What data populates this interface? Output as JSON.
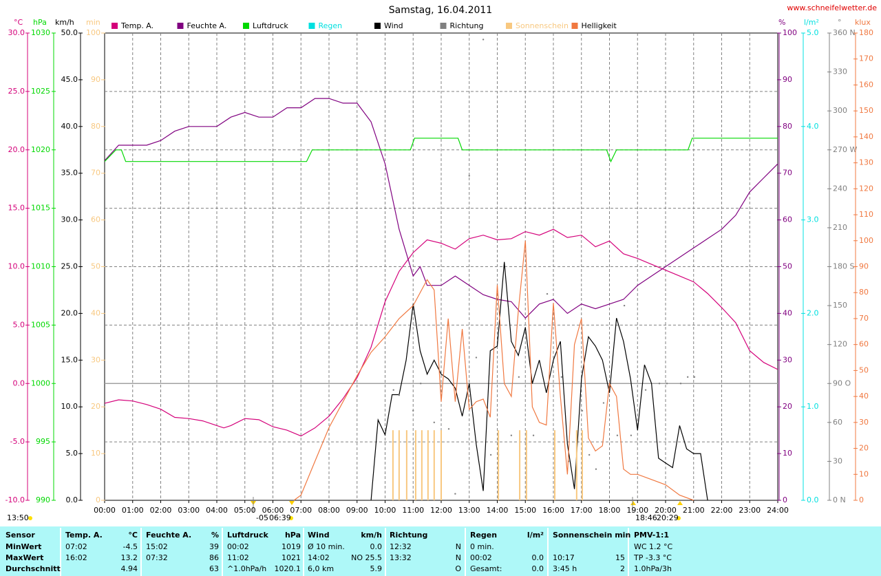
{
  "chart_data": {
    "type": "line",
    "title": "Samstag, 16.04.2011",
    "source": "www.schneifelwetter.de",
    "xlim": [
      0,
      24
    ],
    "xticks": [
      {
        "value": 0,
        "label": "00:00"
      },
      {
        "value": 1,
        "label": "01:00"
      },
      {
        "value": 2,
        "label": "02:00"
      },
      {
        "value": 3,
        "label": "03:00"
      },
      {
        "value": 4,
        "label": "04:00"
      },
      {
        "value": 5,
        "label": "05:00"
      },
      {
        "value": 6,
        "label": "06:00"
      },
      {
        "value": 7,
        "label": "07:00"
      },
      {
        "value": 8,
        "label": "08:00"
      },
      {
        "value": 9,
        "label": "09:00"
      },
      {
        "value": 10,
        "label": "10:00"
      },
      {
        "value": 11,
        "label": "11:00"
      },
      {
        "value": 12,
        "label": "12:00"
      },
      {
        "value": 13,
        "label": "13:00"
      },
      {
        "value": 14,
        "label": "14:00"
      },
      {
        "value": 15,
        "label": "15:00"
      },
      {
        "value": 16,
        "label": "16:00"
      },
      {
        "value": 17,
        "label": "17:00"
      },
      {
        "value": 18,
        "label": "18:00"
      },
      {
        "value": 19,
        "label": "19:00"
      },
      {
        "value": 20,
        "label": "20:00"
      },
      {
        "value": 21,
        "label": "21:00"
      },
      {
        "value": 22,
        "label": "22:00"
      },
      {
        "value": 23,
        "label": "23:00"
      },
      {
        "value": 24,
        "label": "24:00"
      }
    ],
    "grid": true,
    "annotations": [
      "13:50",
      "-05",
      "06:39",
      "18:46",
      "20:29"
    ],
    "series": [
      {
        "name": "Temp. A.",
        "color": "#d4007a",
        "type": "line",
        "unit": "°C",
        "ylim": [
          -10,
          30
        ],
        "yticks": [
          {
            "value": -10,
            "label": "-10.0"
          },
          {
            "value": -5,
            "label": "-5.0"
          },
          {
            "value": 0,
            "label": "0.0"
          },
          {
            "value": 5,
            "label": "5.0"
          },
          {
            "value": 10,
            "label": "10.0"
          },
          {
            "value": 15,
            "label": "15.0"
          },
          {
            "value": 20,
            "label": "20.0"
          },
          {
            "value": 25,
            "label": "25.0"
          },
          {
            "value": 30,
            "label": "30.0"
          }
        ],
        "x": [
          0,
          0.5,
          1,
          1.5,
          2,
          2.5,
          3,
          3.5,
          4,
          4.25,
          4.5,
          5,
          5.5,
          6,
          6.5,
          7,
          7.5,
          8,
          8.5,
          9,
          9.5,
          10,
          10.5,
          11,
          11.5,
          12,
          12.5,
          13,
          13.5,
          14,
          14.5,
          15,
          15.5,
          16,
          16.5,
          17,
          17.5,
          18,
          18.5,
          19,
          19.5,
          20,
          20.5,
          21,
          21.5,
          22,
          22.5,
          23,
          23.5,
          24
        ],
        "values": [
          -1.7,
          -1.4,
          -1.5,
          -1.8,
          -2.2,
          -2.9,
          -3.0,
          -3.2,
          -3.6,
          -3.8,
          -3.6,
          -3.0,
          -3.1,
          -3.7,
          -4.0,
          -4.5,
          -3.8,
          -2.8,
          -1.3,
          0.5,
          3.1,
          7.0,
          9.6,
          11.2,
          12.3,
          12.0,
          11.5,
          12.4,
          12.7,
          12.3,
          12.4,
          13.0,
          12.7,
          13.2,
          12.5,
          12.7,
          11.7,
          12.2,
          11.1,
          10.7,
          10.2,
          9.7,
          9.2,
          8.7,
          7.7,
          6.5,
          5.2,
          2.8,
          1.8,
          1.2
        ]
      },
      {
        "name": "Feuchte A.",
        "color": "#800080",
        "type": "line",
        "unit": "%",
        "ylim": [
          0,
          100
        ],
        "yticks": [
          0,
          10,
          20,
          30,
          40,
          50,
          60,
          70,
          80,
          90,
          100
        ],
        "x": [
          0,
          0.5,
          1,
          1.5,
          2,
          2.5,
          3,
          3.5,
          4,
          4.5,
          5,
          5.5,
          6,
          6.5,
          7,
          7.5,
          8,
          8.5,
          9,
          9.5,
          10,
          10.5,
          11,
          11.25,
          11.5,
          12,
          12.5,
          13,
          13.5,
          14,
          14.5,
          15,
          15.5,
          16,
          16.5,
          17,
          17.5,
          18,
          18.5,
          19,
          19.5,
          20,
          20.5,
          21,
          21.5,
          22,
          22.5,
          23,
          23.5,
          24
        ],
        "values": [
          72.7,
          76,
          76,
          76,
          77,
          79,
          80,
          80,
          80,
          82,
          83,
          82,
          82,
          84,
          84,
          86,
          86,
          85,
          85,
          81,
          72,
          58,
          48,
          50,
          46,
          46,
          48,
          46,
          44,
          43,
          42.5,
          39,
          42,
          43,
          40,
          42,
          41,
          42,
          43,
          46,
          48,
          50,
          52,
          54,
          56,
          58,
          61,
          66,
          69,
          72
        ]
      },
      {
        "name": "Luftdruck",
        "color": "#00d800",
        "type": "line",
        "unit": "hPa",
        "ylim": [
          990,
          1030
        ],
        "yticks": [
          990,
          995,
          1000,
          1005,
          1010,
          1015,
          1020,
          1025,
          1030
        ],
        "x": [
          0,
          0.4,
          0.6,
          0.75,
          7.2,
          7.4,
          10.9,
          11.05,
          12.6,
          12.75,
          17.9,
          18.05,
          18.25,
          20.8,
          20.95,
          24
        ],
        "values": [
          1019,
          1020,
          1020,
          1019,
          1019,
          1020,
          1020,
          1021,
          1021,
          1020,
          1020,
          1019,
          1020,
          1020,
          1021,
          1021
        ]
      },
      {
        "name": "Regen",
        "color": "#00e0e0",
        "unit": "l/m²",
        "ylim": [
          0,
          5
        ],
        "yticks": [
          {
            "value": 0,
            "label": "0.0"
          },
          {
            "value": 1,
            "label": "1.0"
          },
          {
            "value": 2,
            "label": "2.0"
          },
          {
            "value": 3,
            "label": "3.0"
          },
          {
            "value": 4,
            "label": "4.0"
          },
          {
            "value": 5,
            "label": "5.0"
          }
        ]
      },
      {
        "name": "Wind",
        "color": "#000000",
        "type": "line",
        "unit": "km/h",
        "ylim": [
          0,
          50
        ],
        "yticks": [
          {
            "value": 0,
            "label": "0.0"
          },
          {
            "value": 5,
            "label": "5.0"
          },
          {
            "value": 10,
            "label": "10.0"
          },
          {
            "value": 15,
            "label": "15.0"
          },
          {
            "value": 20,
            "label": "20.0"
          },
          {
            "value": 25,
            "label": "25.0"
          },
          {
            "value": 30,
            "label": "30.0"
          },
          {
            "value": 35,
            "label": "35.0"
          },
          {
            "value": 40,
            "label": "40.0"
          },
          {
            "value": 45,
            "label": "45.0"
          },
          {
            "value": 50,
            "label": "50.0"
          }
        ],
        "x": [
          9.5,
          9.75,
          10,
          10.25,
          10.5,
          10.75,
          11,
          11.25,
          11.5,
          11.75,
          12,
          12.25,
          12.5,
          12.75,
          13,
          13.25,
          13.5,
          13.75,
          14,
          14.25,
          14.5,
          14.75,
          15,
          15.25,
          15.5,
          15.75,
          16,
          16.25,
          16.5,
          16.75,
          17,
          17.25,
          17.5,
          17.75,
          18,
          18.25,
          18.5,
          18.75,
          19,
          19.25,
          19.5,
          19.75,
          20,
          20.25,
          20.5,
          20.75,
          21,
          21.25,
          21.5
        ],
        "values": [
          0,
          8.6,
          7,
          11.3,
          11.3,
          15,
          21,
          16,
          13.5,
          15,
          13.5,
          13,
          12,
          9,
          12.5,
          6,
          1,
          16,
          16.5,
          25.5,
          17,
          15.5,
          18.5,
          12.5,
          15,
          11.5,
          15,
          17,
          6,
          1.2,
          13,
          17.5,
          16.5,
          15,
          11.5,
          19.5,
          17,
          13,
          7.5,
          14.5,
          12.5,
          4.5,
          4,
          3.5,
          8,
          5.5,
          5,
          5,
          0
        ]
      },
      {
        "name": "Richtung",
        "color": "#808080",
        "type": "scatter",
        "unit": "°",
        "ylim": [
          0,
          360
        ],
        "yticks": [
          {
            "value": 0,
            "label": "0 N"
          },
          30,
          60,
          {
            "value": 90,
            "label": "90 O"
          },
          120,
          150,
          {
            "value": 180,
            "label": "180 S"
          },
          210,
          240,
          {
            "value": 270,
            "label": "270 W"
          },
          300,
          330,
          {
            "value": 360,
            "label": "360 N"
          }
        ],
        "x": [
          10.3,
          10.5,
          11.0,
          11.27,
          11.75,
          12.27,
          12.5,
          13.0,
          13.25,
          13.5,
          13.77,
          14.04,
          14.5,
          14.77,
          15.29,
          15.78,
          16.29,
          16.54,
          17.03,
          17.28,
          17.52,
          17.79,
          18.28,
          18.53,
          18.77,
          19.29,
          19.78,
          20.05,
          20.54,
          20.79,
          21.03
        ],
        "values": [
          85,
          81,
          69,
          90,
          60,
          55,
          5,
          250,
          110,
          355,
          35,
          35,
          50,
          95,
          50,
          159,
          95,
          30,
          69,
          35,
          24,
          75,
          50,
          150,
          50,
          85,
          90,
          90,
          90,
          95,
          95
        ]
      },
      {
        "name": "Sonnenschein",
        "color": "#f8c880",
        "type": "bar",
        "unit": "min",
        "ylim": [
          0,
          100
        ],
        "yticks": [
          0,
          10,
          20,
          30,
          40,
          50,
          60,
          70,
          80,
          90,
          100
        ],
        "x": [
          10.28,
          10.5,
          10.77,
          11.09,
          11.31,
          11.53,
          11.75,
          12.0,
          14.04,
          14.8,
          15.04,
          16.05,
          16.83,
          17.03
        ],
        "values": [
          15,
          15,
          15,
          15,
          15,
          15,
          15,
          15,
          15,
          15,
          15,
          15,
          15,
          15
        ]
      },
      {
        "name": "Helligkeit",
        "color": "#f07840",
        "type": "line",
        "unit": "klux",
        "ylim": [
          0,
          180
        ],
        "yticks": [
          0,
          10,
          20,
          30,
          40,
          50,
          60,
          70,
          80,
          90,
          100,
          110,
          120,
          130,
          140,
          150,
          160,
          170,
          180
        ],
        "x": [
          6.75,
          7,
          7.5,
          8,
          8.5,
          9,
          9.5,
          10,
          10.5,
          11,
          11.5,
          11.75,
          12,
          12.25,
          12.5,
          12.75,
          13,
          13.25,
          13.5,
          13.75,
          14,
          14.25,
          14.5,
          14.75,
          15,
          15.25,
          15.5,
          15.75,
          16,
          16.25,
          16.5,
          16.75,
          17,
          17.25,
          17.5,
          17.75,
          18,
          18.25,
          18.5,
          18.75,
          19,
          19.5,
          20,
          20.5,
          21
        ],
        "values": [
          0,
          2,
          15,
          28,
          38,
          48,
          57,
          63,
          70,
          75,
          85,
          81,
          38,
          70,
          38,
          66,
          35,
          38,
          39,
          32,
          83,
          45,
          40,
          73,
          100,
          36,
          30,
          29,
          76,
          40,
          10,
          60,
          70,
          24,
          19,
          21,
          45,
          40,
          12,
          10,
          10,
          8,
          6,
          2,
          0
        ]
      }
    ]
  },
  "table": {
    "header": [
      {
        "left": "Sensor"
      },
      {
        "left": "Temp. A.",
        "right": "°C"
      },
      {
        "left": "Feuchte A.",
        "right": "%"
      },
      {
        "left": "Luftdruck",
        "right": "hPa"
      },
      {
        "left": "Wind",
        "right": "km/h"
      },
      {
        "left": "Richtung"
      },
      {
        "left": "Regen",
        "right": "l/m²"
      },
      {
        "left": "Sonnenschein min"
      },
      {
        "left": "PMV-1:1"
      }
    ],
    "rows": [
      [
        {
          "left": "MinWert"
        },
        {
          "left": "07:02",
          "right": "-4.5"
        },
        {
          "left": "15:02",
          "right": "39"
        },
        {
          "left": "00:02",
          "right": "1019"
        },
        {
          "left": "Ø 10 min.",
          "right": "0.0"
        },
        {
          "left": "12:32",
          "right": "N"
        },
        {
          "left": "0 min."
        },
        {},
        {
          "left": "WC 1.2 °C"
        }
      ],
      [
        {
          "left": "MaxWert"
        },
        {
          "left": "16:02",
          "right": "13.2"
        },
        {
          "left": "07:32",
          "right": "86"
        },
        {
          "left": "11:02",
          "right": "1021"
        },
        {
          "left": "14:02",
          "right": "NO 25.5"
        },
        {
          "left": "13:32",
          "right": "N"
        },
        {
          "left": "00:02",
          "right": "0.0"
        },
        {
          "left": "10:17",
          "right": "15"
        },
        {
          "left": "TP -3.3 °C"
        }
      ],
      [
        {
          "left": "Durchschnitt"
        },
        {
          "right": "4.94"
        },
        {
          "right": "63"
        },
        {
          "left": "^1.0hPa/h",
          "right": "1020.1"
        },
        {
          "left": "6,0 km",
          "right": "5.9"
        },
        {
          "right": "O"
        },
        {
          "left": "Gesamt:",
          "right": "0.0"
        },
        {
          "left": "3:45 h",
          "right": "2"
        },
        {
          "left": "1.0hPa/3h"
        }
      ]
    ]
  }
}
